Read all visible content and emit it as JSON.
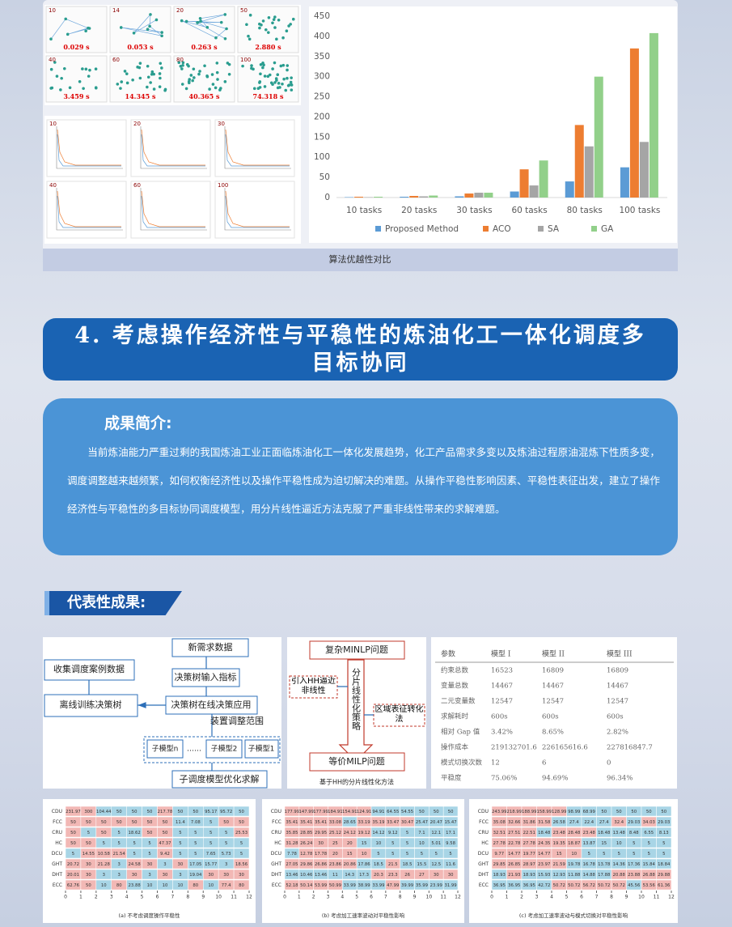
{
  "chart_data": {
    "type": "bar",
    "categories": [
      "10 tasks",
      "20 tasks",
      "30 tasks",
      "60 tasks",
      "80 tasks",
      "100 tasks"
    ],
    "series": [
      {
        "name": "Proposed Method",
        "color": "#5b9bd5",
        "values": [
          1,
          2,
          3,
          15,
          40,
          75
        ]
      },
      {
        "name": "ACO",
        "color": "#ed7d31",
        "values": [
          2,
          4,
          10,
          70,
          180,
          370
        ]
      },
      {
        "name": "SA",
        "color": "#a5a5a5",
        "values": [
          1,
          3,
          12,
          30,
          127,
          138
        ]
      },
      {
        "name": "GA",
        "color": "#92d08a",
        "values": [
          2,
          5,
          12,
          92,
          300,
          408
        ]
      }
    ],
    "ylim": [
      0,
      450
    ],
    "yticks": [
      0,
      50,
      100,
      150,
      200,
      250,
      300,
      350,
      400,
      450
    ],
    "grid": false,
    "legend": "bottom"
  },
  "scatter_panels": [
    {
      "n": "10",
      "time": "0.029 s"
    },
    {
      "n": "14",
      "time": "0.053 s"
    },
    {
      "n": "20",
      "time": "0.263 s"
    },
    {
      "n": "50",
      "time": "2.880 s"
    },
    {
      "n": "40",
      "time": "3.459 s"
    },
    {
      "n": "60",
      "time": "14.345 s"
    },
    {
      "n": "80",
      "time": "40.365 s"
    },
    {
      "n": "100",
      "time": "74.318 s"
    }
  ],
  "convergence_panels": [
    "10",
    "20",
    "30",
    "40",
    "60",
    "100"
  ],
  "caption": "算法优越性对比",
  "section": {
    "title_lines": [
      "4. 考虑操作经济性与平稳性的炼油化工一体化调度多",
      "目标协同"
    ],
    "intro_heading": "成果简介:",
    "intro_text": "当前炼油能力严重过剩的我国炼油工业正面临炼油化工一体化发展趋势，化工产品需求多变以及炼油过程原油混炼下性质多变，调度调整越来越频繁，如何权衡经济性以及操作平稳性成为迫切解决的难题。从操作平稳性影响因素、平稳性表征出发，建立了操作经济性与平稳性的多目标协同调度模型，用分片线性逼近方法克服了严重非线性带来的求解难题。",
    "results_heading": "代表性成果:"
  },
  "flow": {
    "new_data": "新需求数据",
    "collect": "收集调度案例数据",
    "input": "决策树输入指标",
    "offline": "离线训练决策树",
    "online": "决策树在线决策应用",
    "range": "装置调整范围",
    "sub_n": "子模型n",
    "dots": "……",
    "sub_2": "子模型2",
    "sub_1": "子模型1",
    "solve": "子调度模型优化求解"
  },
  "hh": {
    "minlp": "复杂MINLP问题",
    "intro_hh": "引入HH逼近非线性",
    "strategy": "分片线性化策略",
    "region": "区域表征转化法",
    "milp": "等价MILP问题",
    "caption": "基于HH的分片线性化方法"
  },
  "table": {
    "header": [
      "参数",
      "模型 I",
      "模型 II",
      "模型 III"
    ],
    "rows": [
      [
        "约束总数",
        "16523",
        "16809",
        "16809"
      ],
      [
        "变量总数",
        "14467",
        "14467",
        "14467"
      ],
      [
        "二元变量数",
        "12547",
        "12547",
        "12547"
      ],
      [
        "求解耗时",
        "600s",
        "600s",
        "600s"
      ],
      [
        "相对 Gap 值",
        "3.42%",
        "8.65%",
        "2.82%"
      ],
      [
        "操作成本",
        "219132701.6",
        "226165616.6",
        "227816847.7"
      ],
      [
        "模式切换次数",
        "12",
        "6",
        "0"
      ],
      [
        "平稳度",
        "75.06%",
        "94.69%",
        "96.34%"
      ]
    ]
  },
  "heatmaps": [
    {
      "row_labels": [
        "CDU",
        "FCC",
        "CRU",
        "HC",
        "DCU",
        "GHT",
        "DHT",
        "ECC"
      ],
      "cells": [
        [
          231.97,
          300.0,
          104.44,
          50.0,
          50.0,
          50.0,
          217.78,
          50.0,
          50.0,
          95.17,
          95.72,
          50.0
        ],
        [
          50.0,
          50.0,
          50.0,
          50.0,
          50.0,
          50.0,
          50.0,
          11.4,
          7.08,
          5.0,
          50.0,
          50.0
        ],
        [
          50.0,
          5.0,
          50.0,
          5.0,
          18.62,
          50.0,
          50.0,
          5.0,
          5.0,
          5.0,
          5.0,
          25.53
        ],
        [
          50.0,
          50.0,
          5.0,
          5.0,
          5.0,
          5.0,
          47.37,
          5.0,
          5.0,
          5.0,
          5.0,
          5.0
        ],
        [
          5.0,
          14.55,
          10.58,
          21.54,
          5.0,
          5.0,
          9.42,
          5.0,
          5.0,
          7.65,
          5.73,
          5.0
        ],
        [
          20.72,
          30.0,
          21.28,
          3.0,
          24.58,
          30.0,
          3.0,
          30.0,
          17.05,
          15.77,
          3.0,
          18.56
        ],
        [
          20.01,
          30.0,
          3.0,
          3.0,
          30.0,
          3.0,
          30.0,
          3.0,
          19.04,
          30.0,
          30.0,
          30.0
        ],
        [
          62.76,
          50.0,
          10.0,
          80.0,
          23.88,
          10.0,
          10.0,
          10.0,
          80.0,
          10.0,
          77.4,
          80.0
        ]
      ],
      "xticks": [
        0,
        1,
        2,
        3,
        4,
        5,
        6,
        7,
        8,
        9,
        10,
        11,
        12
      ],
      "caption": "(a) 不考虑调度操作平稳性"
    },
    {
      "row_labels": [
        "CDU",
        "FCC",
        "CRU",
        "HC",
        "DCU",
        "GHT",
        "DHT",
        "ECC"
      ],
      "cells": [
        [
          177.99,
          147.99,
          177.99,
          184.91,
          154.91,
          124.91,
          94.91,
          64.55,
          54.55,
          50.0,
          50.0,
          50.0
        ],
        [
          35.41,
          35.41,
          35.41,
          33.08,
          28.65,
          33.19,
          35.19,
          33.47,
          30.47,
          25.47,
          20.47,
          15.47
        ],
        [
          35.85,
          28.85,
          29.95,
          25.12,
          24.12,
          19.12,
          14.12,
          9.12,
          5.0,
          7.1,
          12.1,
          17.1
        ],
        [
          31.28,
          26.24,
          30.0,
          25.0,
          20.0,
          15.0,
          10.0,
          5.0,
          5.0,
          10.0,
          5.01,
          9.58
        ],
        [
          7.78,
          12.78,
          17.78,
          20.0,
          15.0,
          10.0,
          5.0,
          5.0,
          5.0,
          5.0,
          5.0,
          5.0
        ],
        [
          27.05,
          29.86,
          26.86,
          23.86,
          20.86,
          17.86,
          18.5,
          21.5,
          18.5,
          15.5,
          12.5,
          11.6
        ],
        [
          13.46,
          10.46,
          13.46,
          11.0,
          14.3,
          17.3,
          20.3,
          23.3,
          26.0,
          27.0,
          30.0,
          30.0
        ],
        [
          52.18,
          50.14,
          53.99,
          50.99,
          33.99,
          38.99,
          33.99,
          47.99,
          39.99,
          35.99,
          23.99,
          31.99
        ]
      ],
      "xticks": [
        0,
        1,
        2,
        3,
        4,
        5,
        6,
        7,
        8,
        9,
        10,
        11,
        12
      ],
      "caption": "(b) 考虑加工速率波动对平稳性影响"
    },
    {
      "row_labels": [
        "CDU",
        "FCC",
        "CRU",
        "HC",
        "DCU",
        "GHT",
        "DHT",
        "ECC"
      ],
      "cells": [
        [
          243.99,
          218.99,
          188.99,
          158.99,
          128.99,
          98.99,
          68.99,
          50.0,
          50.0,
          50.0,
          50.0,
          50.0
        ],
        [
          35.08,
          32.66,
          31.86,
          31.58,
          26.58,
          27.4,
          22.4,
          27.4,
          32.4,
          29.03,
          34.03,
          29.03
        ],
        [
          32.51,
          27.51,
          22.51,
          18.48,
          23.48,
          28.48,
          23.48,
          18.48,
          13.48,
          8.48,
          6.55,
          8.13
        ],
        [
          27.78,
          22.78,
          27.78,
          24.35,
          19.35,
          18.87,
          13.87,
          15.0,
          10.0,
          5.0,
          5.0,
          5.0
        ],
        [
          9.77,
          14.77,
          19.77,
          14.77,
          15.0,
          10.0,
          5.0,
          5.0,
          5.0,
          5.0,
          5.0,
          5.0
        ],
        [
          29.85,
          26.85,
          28.97,
          23.97,
          21.59,
          19.78,
          16.78,
          13.78,
          14.36,
          17.36,
          15.84,
          18.84
        ],
        [
          18.93,
          21.93,
          18.93,
          15.93,
          12.93,
          11.88,
          14.88,
          17.88,
          20.88,
          23.88,
          26.88,
          29.88
        ],
        [
          36.95,
          36.95,
          36.95,
          42.72,
          50.72,
          50.72,
          56.72,
          50.72,
          50.72,
          45.56,
          53.56,
          61.36
        ]
      ],
      "xticks": [
        0,
        1,
        2,
        3,
        4,
        5,
        6,
        7,
        8,
        9,
        10,
        11,
        12
      ],
      "caption": "(c) 考虑加工速率波动与模式切换对平稳性影响"
    }
  ]
}
